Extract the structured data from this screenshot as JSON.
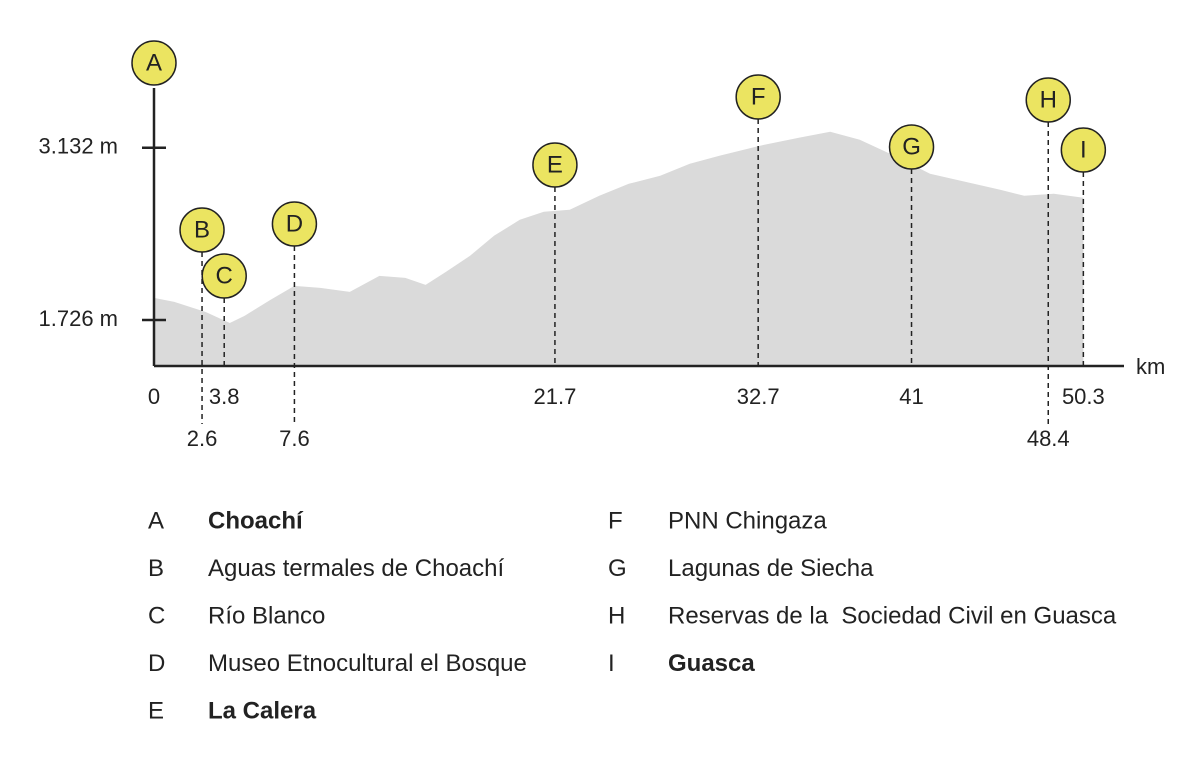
{
  "chart_data": {
    "type": "area",
    "x_label": "km",
    "x": [
      0,
      1.1,
      2.8,
      4.1,
      4.9,
      6.3,
      7.6,
      9.0,
      10.6,
      12.2,
      13.6,
      14.7,
      15.8,
      17.1,
      18.4,
      19.8,
      21.1,
      22.5,
      24.1,
      25.7,
      27.4,
      29.0,
      30.6,
      32.8,
      34.9,
      36.6,
      38.2,
      40.3,
      42.0,
      43.9,
      45.8,
      47.1,
      48.7,
      50.3
    ],
    "values": [
      1906,
      1873,
      1791,
      1701,
      1759,
      1890,
      2004,
      1988,
      1955,
      2086,
      2069,
      2012,
      2118,
      2249,
      2413,
      2544,
      2609,
      2626,
      2740,
      2838,
      2904,
      3002,
      3067,
      3149,
      3214,
      3263,
      3198,
      3051,
      2920,
      2855,
      2789,
      2740,
      2756,
      2724
    ],
    "color": "#dadada",
    "xlim": [
      0,
      52.5
    ],
    "ylim": [
      1350,
      3620
    ],
    "yticks": [
      {
        "value": 1726,
        "label": "1.726 m"
      },
      {
        "value": 3132,
        "label": "3.132 m"
      }
    ],
    "xticks": [
      0,
      2.6,
      3.8,
      7.6,
      21.7,
      32.7,
      41,
      48.4,
      50.3
    ],
    "marker_color": "#ebe461",
    "stops": [
      {
        "letter": "A",
        "name": "Choachí",
        "bold": true
      },
      {
        "letter": "B",
        "name": "Aguas termales de Choachí",
        "bold": false
      },
      {
        "letter": "C",
        "name": "Río Blanco",
        "bold": false
      },
      {
        "letter": "D",
        "name": "Museo Etnocultural el Bosque",
        "bold": false
      },
      {
        "letter": "E",
        "name": "La Calera",
        "bold": true
      },
      {
        "letter": "F",
        "name": "PNN Chingaza",
        "bold": false
      },
      {
        "letter": "G",
        "name": "Lagunas de Siecha",
        "bold": false
      },
      {
        "letter": "H",
        "name": "Reservas de la  Sociedad Civil en Guasca",
        "bold": false
      },
      {
        "letter": "I",
        "name": "Guasca",
        "bold": true
      }
    ]
  }
}
